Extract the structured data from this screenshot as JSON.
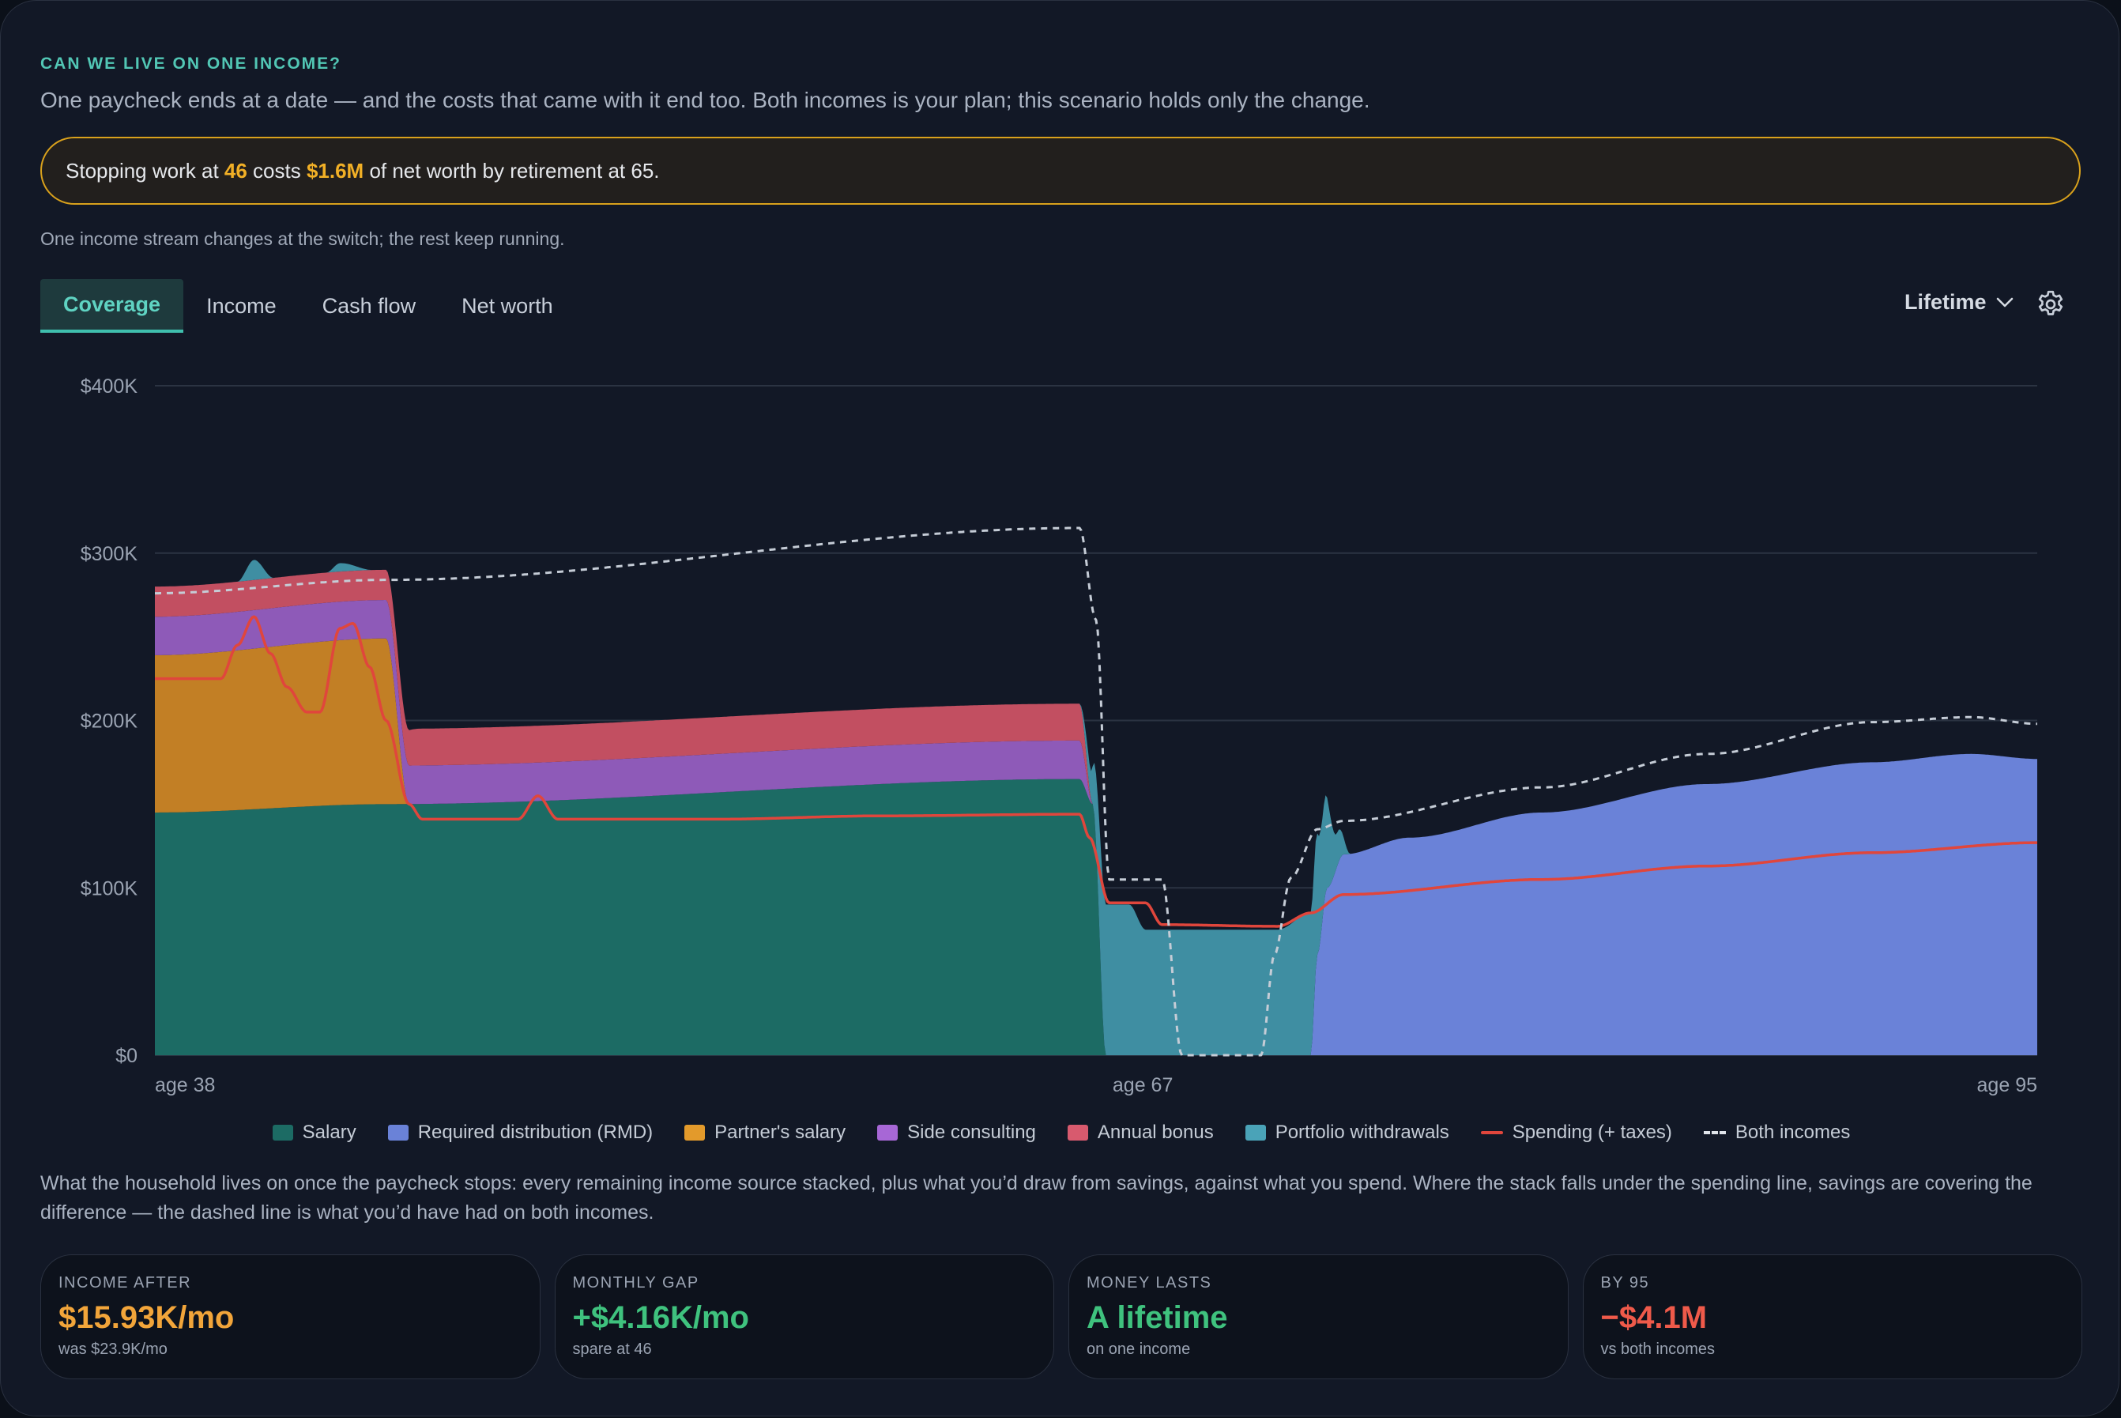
{
  "header": {
    "kicker": "CAN WE LIVE ON ONE INCOME?",
    "subtitle": "One paycheck ends at a date — and the costs that came with it end too. Both incomes is your plan; this scenario holds only the change."
  },
  "alert": {
    "prefix": "Stopping work at ",
    "stop_age": "46",
    "mid": " costs ",
    "cost": "$1.6M",
    "suffix": " of net worth by retirement at 65."
  },
  "note": "One income stream changes at the switch; the rest keep running.",
  "tabs": [
    {
      "label": "Coverage",
      "active": true
    },
    {
      "label": "Income",
      "active": false
    },
    {
      "label": "Cash flow",
      "active": false
    },
    {
      "label": "Net worth",
      "active": false
    }
  ],
  "range_select": {
    "label": "Lifetime"
  },
  "icons": {
    "range": "chevron-down-icon",
    "settings": "gear-icon"
  },
  "colors": {
    "salary": "#1c6b64",
    "rmd": "#6a82d8",
    "partner_salary": "#c27f25",
    "side_consulting": "#8e5ab8",
    "annual_bonus": "#c24f61",
    "portfolio_withdrawals": "#3f8ea2",
    "spending": "#e0463c",
    "both_incomes": "#c5ccd6"
  },
  "chart_data": {
    "type": "area",
    "x_label_ticks": [
      "age 38",
      "age 67",
      "age 95"
    ],
    "xlim": [
      38,
      95
    ],
    "ylim": [
      0,
      400000
    ],
    "y_ticks": [
      0,
      100000,
      200000,
      300000,
      400000
    ],
    "y_tick_labels": [
      "$0",
      "$100K",
      "$200K",
      "$300K",
      "$400K"
    ],
    "grid": true,
    "legend_position": "bottom",
    "stack_series": [
      {
        "key": "salary",
        "name": "Salary",
        "points": [
          [
            38,
            145000
          ],
          [
            45,
            150000
          ],
          [
            66,
            165000
          ],
          [
            66.4,
            150000
          ],
          [
            66.8,
            0
          ],
          [
            95,
            0
          ]
        ]
      },
      {
        "key": "rmd",
        "name": "Required distribution (RMD)",
        "points": [
          [
            38,
            0
          ],
          [
            73,
            0
          ],
          [
            73.2,
            60000
          ],
          [
            73.5,
            100000
          ],
          [
            74,
            120000
          ],
          [
            76,
            130000
          ],
          [
            80,
            145000
          ],
          [
            85,
            162000
          ],
          [
            90,
            175000
          ],
          [
            93,
            180000
          ],
          [
            95,
            177000
          ]
        ]
      },
      {
        "key": "partner_salary",
        "name": "Partner's salary",
        "points": [
          [
            38,
            94000
          ],
          [
            45,
            99000
          ],
          [
            45.7,
            0
          ],
          [
            95,
            0
          ]
        ]
      },
      {
        "key": "side_consulting",
        "name": "Side consulting",
        "points": [
          [
            38,
            23000
          ],
          [
            45,
            23000
          ],
          [
            46,
            23000
          ],
          [
            66,
            23000
          ],
          [
            66.4,
            0
          ],
          [
            95,
            0
          ]
        ]
      },
      {
        "key": "annual_bonus",
        "name": "Annual bonus",
        "points": [
          [
            38,
            18000
          ],
          [
            45,
            18000
          ],
          [
            46,
            22000
          ],
          [
            66,
            22000
          ],
          [
            66.4,
            0
          ],
          [
            95,
            0
          ]
        ]
      },
      {
        "key": "portfolio_withdrawals",
        "name": "Portfolio withdrawals",
        "points": [
          [
            38,
            0
          ],
          [
            40.5,
            0
          ],
          [
            41,
            12000
          ],
          [
            41.6,
            0
          ],
          [
            43.2,
            0
          ],
          [
            43.6,
            5000
          ],
          [
            44.6,
            0
          ],
          [
            66,
            0
          ],
          [
            66.3,
            15000
          ],
          [
            66.8,
            90000
          ],
          [
            67.5,
            90000
          ],
          [
            68,
            75000
          ],
          [
            71,
            75000
          ],
          [
            72,
            75000
          ],
          [
            73,
            85000
          ],
          [
            73.4,
            60000
          ],
          [
            73.8,
            20000
          ],
          [
            74.2,
            0
          ],
          [
            95,
            0
          ]
        ]
      }
    ],
    "line_series": [
      {
        "key": "spending",
        "name": "Spending (+ taxes)",
        "points": [
          [
            38,
            225000
          ],
          [
            40,
            225000
          ],
          [
            40.5,
            245000
          ],
          [
            41,
            262000
          ],
          [
            41.5,
            240000
          ],
          [
            42,
            220000
          ],
          [
            42.6,
            205000
          ],
          [
            43,
            205000
          ],
          [
            43.6,
            255000
          ],
          [
            44,
            258000
          ],
          [
            44.5,
            232000
          ],
          [
            45,
            200000
          ],
          [
            45.7,
            150000
          ],
          [
            46.1,
            141000
          ],
          [
            49,
            141000
          ],
          [
            49.6,
            155000
          ],
          [
            50.2,
            141000
          ],
          [
            55,
            141000
          ],
          [
            60,
            143000
          ],
          [
            66,
            144000
          ],
          [
            66.3,
            130000
          ],
          [
            66.9,
            91000
          ],
          [
            68,
            91000
          ],
          [
            68.5,
            78000
          ],
          [
            72,
            77000
          ],
          [
            73,
            85000
          ],
          [
            74,
            96000
          ],
          [
            80,
            105000
          ],
          [
            85,
            113000
          ],
          [
            90,
            121000
          ],
          [
            95,
            127000
          ]
        ]
      },
      {
        "key": "both_incomes",
        "name": "Both incomes",
        "dashed": true,
        "points": [
          [
            38,
            276000
          ],
          [
            45,
            284000
          ],
          [
            66,
            315000
          ],
          [
            66.5,
            260000
          ],
          [
            66.9,
            105000
          ],
          [
            68.5,
            105000
          ],
          [
            69.1,
            0
          ],
          [
            71.5,
            0
          ],
          [
            71.9,
            60000
          ],
          [
            72.4,
            106000
          ],
          [
            73.2,
            135000
          ],
          [
            74,
            140000
          ],
          [
            80,
            160000
          ],
          [
            85,
            180000
          ],
          [
            90,
            199000
          ],
          [
            93,
            202000
          ],
          [
            95,
            198000
          ]
        ]
      }
    ]
  },
  "description": "What the household lives on once the paycheck stops: every remaining income source stacked, plus what you’d draw from savings, against what you spend. Where the stack falls under the spending line, savings are covering the difference — the dashed line is what you’d have had on both incomes.",
  "stats": [
    {
      "label": "INCOME AFTER",
      "value": "$15.93K/mo",
      "sub": "was $23.9K/mo",
      "tone": "orange"
    },
    {
      "label": "MONTHLY GAP",
      "value": "+$4.16K/mo",
      "sub": "spare at 46",
      "tone": "green"
    },
    {
      "label": "MONEY LASTS",
      "value": "A lifetime",
      "sub": "on one income",
      "tone": "green"
    },
    {
      "label": "BY 95",
      "value": "−$4.1M",
      "sub": "vs both incomes",
      "tone": "red"
    }
  ]
}
